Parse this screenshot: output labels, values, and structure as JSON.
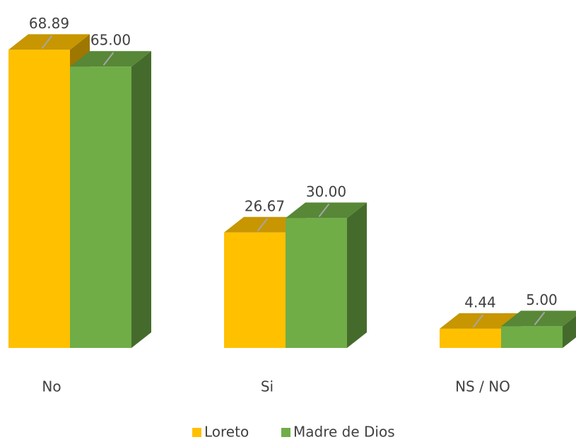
{
  "chart_data": {
    "type": "bar3d",
    "categories": [
      "No",
      "Si",
      "NS / NO"
    ],
    "series": [
      {
        "name": "Loreto",
        "color": "#FFC000",
        "values": [
          68.89,
          26.67,
          4.44
        ]
      },
      {
        "name": "Madre de Dios",
        "color": "#70AD47",
        "values": [
          65.0,
          30.0,
          5.0
        ],
        "value_labels": [
          "65.00",
          "30.00",
          "5.00"
        ]
      }
    ],
    "legend": "bottom"
  }
}
